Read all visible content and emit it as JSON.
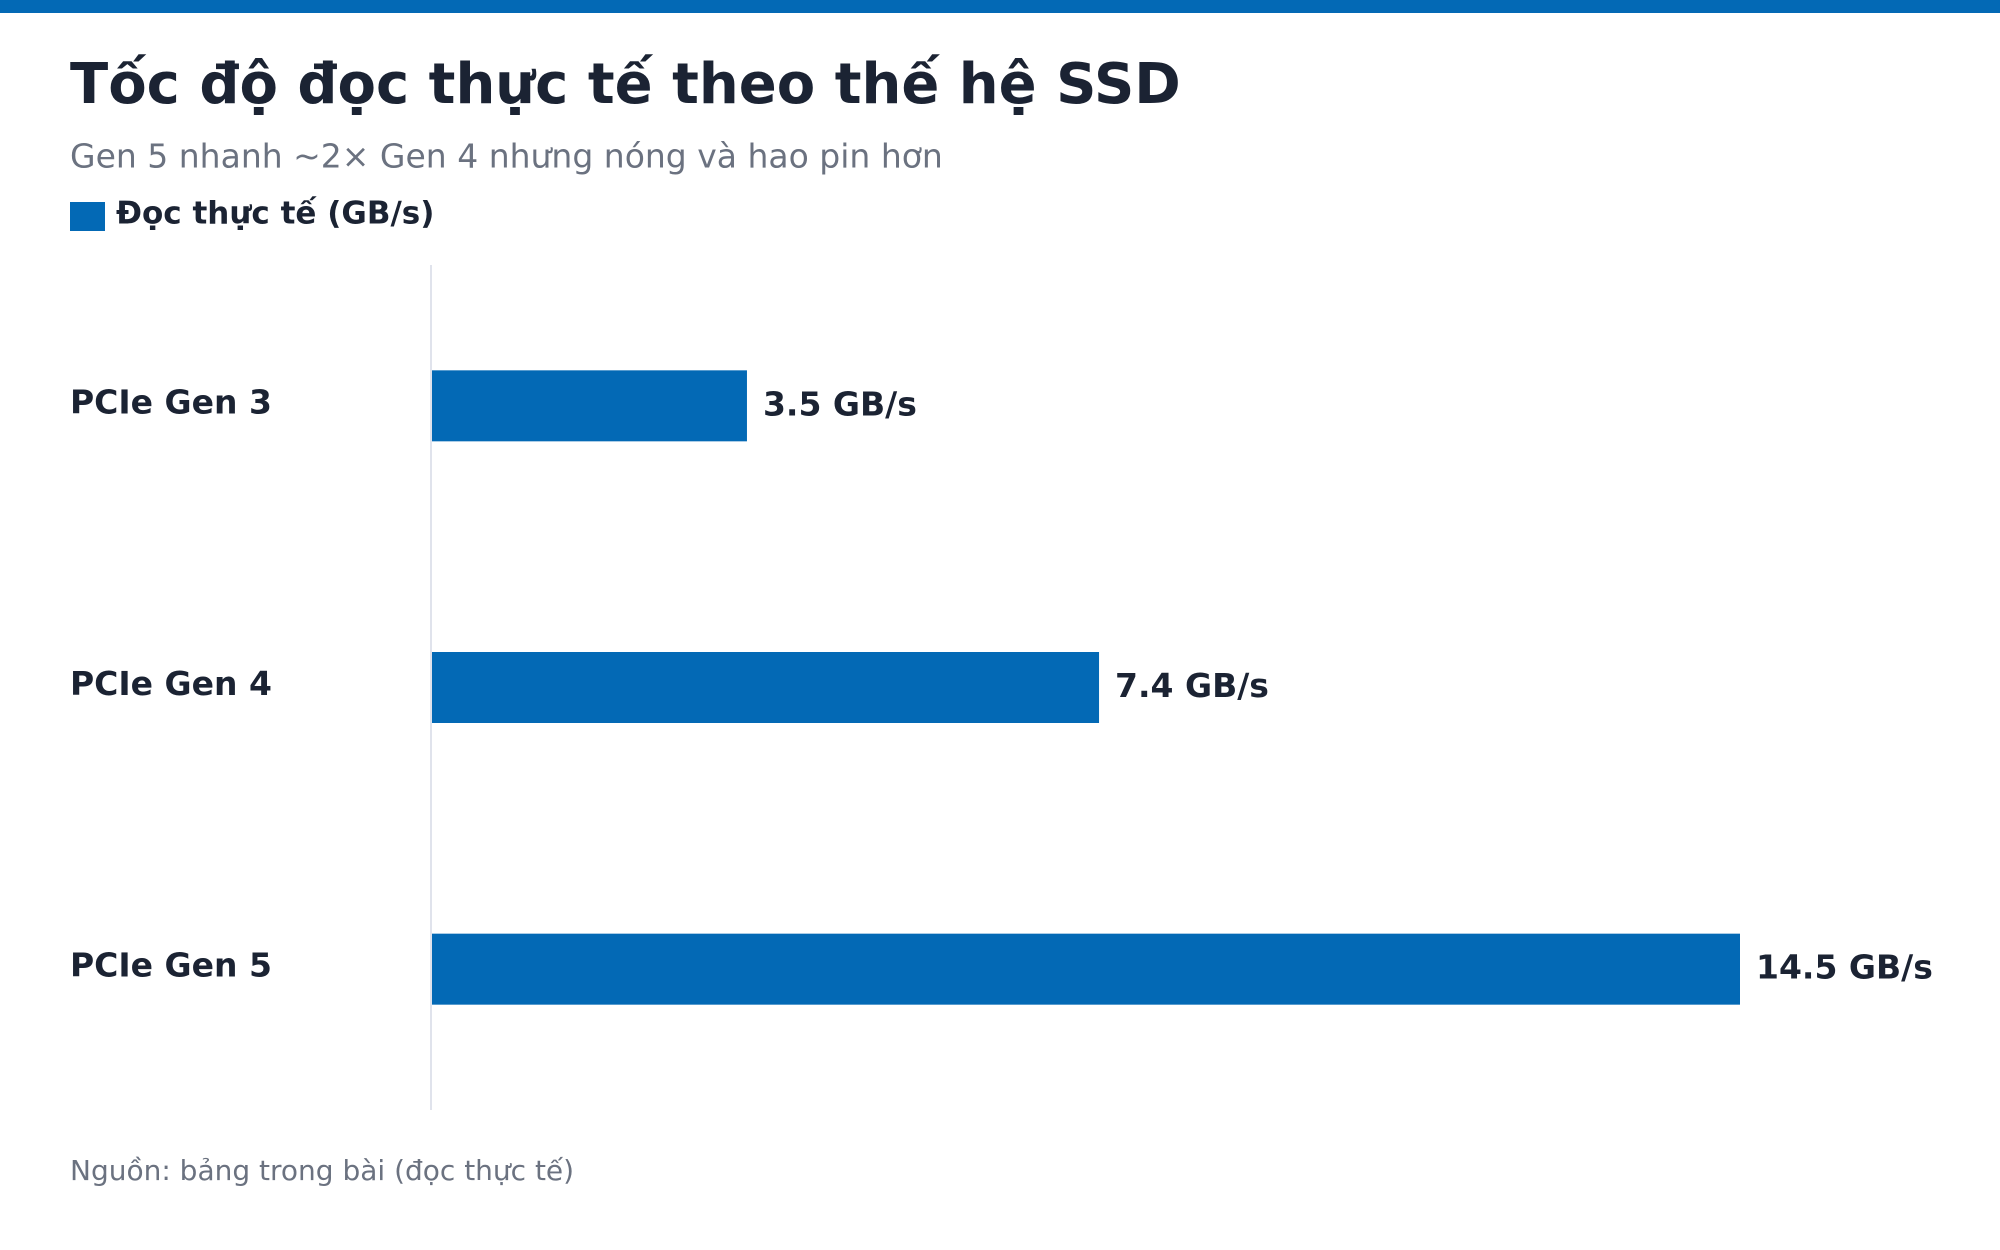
{
  "chart_data": {
    "type": "bar",
    "orientation": "horizontal",
    "title": "Tốc độ đọc thực tế theo thế hệ SSD",
    "subtitle": "Gen 5 nhanh ~2× Gen 4 nhưng nóng và hao pin hơn",
    "source": "Nguồn: bảng trong bài (đọc thực tế)",
    "categories": [
      "PCIe Gen 3",
      "PCIe Gen 4",
      "PCIe Gen 5"
    ],
    "series": [
      {
        "name": "Đọc thực tế (GB/s)",
        "color": "#0369b5",
        "values": [
          3.5,
          7.4,
          14.5
        ],
        "value_labels": [
          "3.5 GB/s",
          "7.4 GB/s",
          "14.5 GB/s"
        ]
      }
    ]
  }
}
